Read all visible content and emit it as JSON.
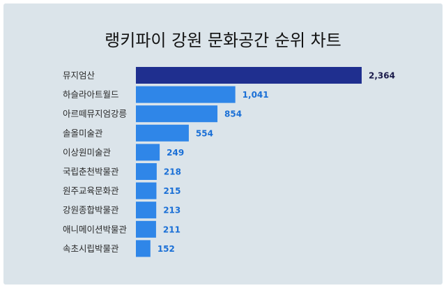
{
  "colors": {
    "background": "#dbe4ea",
    "bar_highlight": "#1f2f8f",
    "bar_default": "#2f86e8",
    "value_highlight": "#1a1a4a",
    "value_default": "#1a6fd6"
  },
  "chart_data": {
    "type": "bar",
    "orientation": "horizontal",
    "title": "랭키파이 강원 문화공간 순위 차트",
    "categories": [
      "뮤지엄산",
      "하슬라아트월드",
      "아르떼뮤지엄강릉",
      "솔올미술관",
      "이상원미술관",
      "국립춘천박물관",
      "원주교육문화관",
      "강원종합박물관",
      "애니메이션박물관",
      "속초시립박물관"
    ],
    "values": [
      2364,
      1041,
      854,
      554,
      249,
      218,
      215,
      213,
      211,
      152
    ],
    "value_labels": [
      "2,364",
      "1,041",
      "854",
      "554",
      "249",
      "218",
      "215",
      "213",
      "211",
      "152"
    ],
    "highlight_index": 0,
    "xlim": [
      0,
      2364
    ],
    "grid": false,
    "legend": "none"
  }
}
